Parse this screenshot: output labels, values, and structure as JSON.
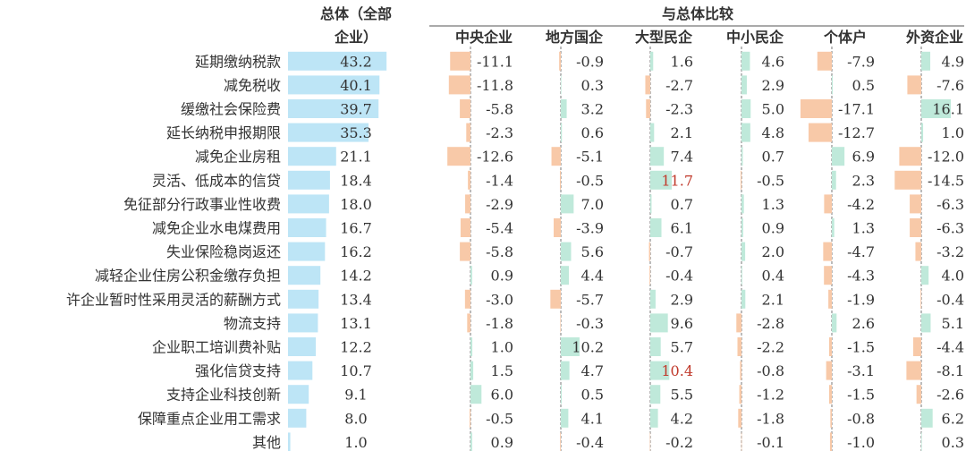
{
  "chart_data": {
    "type": "bar",
    "header": {
      "total_line1": "总体（全部",
      "total_line2": "企业）",
      "compare": "与总体比较"
    },
    "categories": [
      "延期缴纳税款",
      "减免税收",
      "缓缴社会保险费",
      "延长纳税申报期限",
      "减免企业房租",
      "灵活、低成本的信贷",
      "免征部分行政事业性收费",
      "减免企业水电煤费用",
      "失业保险稳岗返还",
      "减轻企业住房公积金缴存负担",
      "许企业暂时性采用灵活的薪酬方式",
      "物流支持",
      "企业职工培训费补贴",
      "强化信贷支持",
      "支持企业科技创新",
      "保障重点企业用工需求",
      "其他"
    ],
    "total": {
      "values": [
        43.2,
        40.1,
        39.7,
        35.3,
        21.1,
        18.4,
        18.0,
        16.7,
        16.2,
        14.2,
        13.4,
        13.1,
        12.2,
        10.7,
        9.1,
        8.0,
        1.0
      ]
    },
    "series": [
      {
        "name": "中央企业",
        "values": [
          -11.1,
          -11.8,
          -5.8,
          -2.3,
          -12.6,
          -1.4,
          -2.9,
          -5.4,
          -5.8,
          0.9,
          -3.0,
          -1.8,
          1.0,
          1.5,
          6.0,
          -0.5,
          0.9
        ]
      },
      {
        "name": "地方国企",
        "values": [
          -0.9,
          0.3,
          3.2,
          0.6,
          -5.1,
          -0.5,
          7.0,
          -3.9,
          5.6,
          4.4,
          -5.7,
          -0.3,
          10.2,
          4.7,
          0.5,
          4.1,
          -0.4
        ]
      },
      {
        "name": "大型民企",
        "values": [
          1.6,
          -2.7,
          -2.3,
          2.1,
          7.4,
          11.7,
          0.7,
          6.1,
          -0.7,
          -0.4,
          2.9,
          9.6,
          5.7,
          10.4,
          5.5,
          4.2,
          -0.2
        ]
      },
      {
        "name": "中小民企",
        "values": [
          4.6,
          2.9,
          5.0,
          4.8,
          0.7,
          -0.5,
          1.3,
          0.9,
          2.0,
          0.4,
          2.1,
          -2.8,
          -2.2,
          -0.8,
          -1.2,
          -1.8,
          -0.1
        ]
      },
      {
        "name": "个体户",
        "values": [
          -7.9,
          0.5,
          -17.1,
          -12.7,
          6.9,
          2.3,
          -4.2,
          1.3,
          -4.7,
          -4.3,
          -1.9,
          2.6,
          -1.5,
          -3.1,
          -1.5,
          -0.8,
          -1.0
        ]
      },
      {
        "name": "外资企业",
        "values": [
          4.9,
          -7.6,
          16.1,
          1.0,
          -12.0,
          -14.5,
          -6.3,
          -6.3,
          -3.2,
          4.0,
          -0.4,
          5.1,
          -4.4,
          -8.1,
          -2.6,
          6.2,
          0.3
        ]
      }
    ],
    "highlights": [
      {
        "series": "大型民企",
        "category": "灵活、低成本的信贷"
      },
      {
        "series": "大型民企",
        "category": "强化信贷支持"
      }
    ],
    "colors": {
      "total_bar": "#bde5f6",
      "positive": "#bfe9da",
      "negative": "#f8c9a8",
      "highlight_text": "#c0392b",
      "text": "#333333"
    }
  }
}
